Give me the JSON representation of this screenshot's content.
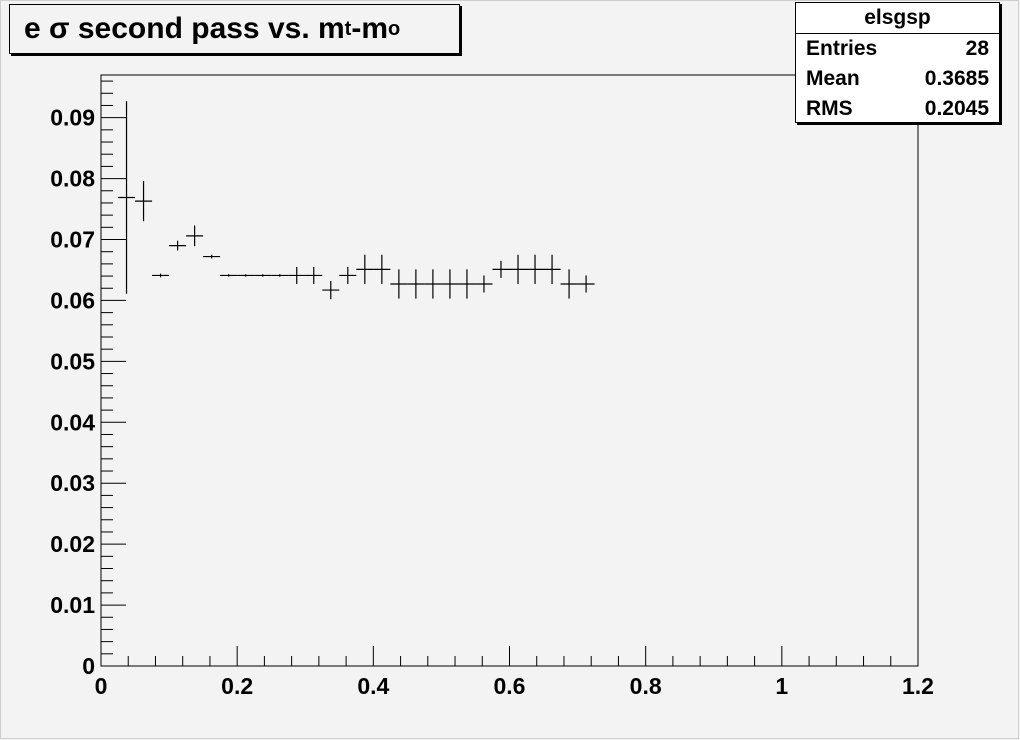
{
  "title": {
    "prefix": "e σ second pass vs. m",
    "sub1": "t",
    "mid": "-m",
    "sub2": "o"
  },
  "stats": {
    "name": "elsgsp",
    "rows": [
      {
        "label": "Entries",
        "value": "28"
      },
      {
        "label": "Mean",
        "value": "0.3685"
      },
      {
        "label": "RMS",
        "value": "0.2045"
      }
    ]
  },
  "chart_data": {
    "type": "scatter",
    "xlim": [
      0,
      1.2
    ],
    "ylim": [
      0,
      0.097
    ],
    "x_ticks": [
      "0",
      "0.2",
      "0.4",
      "0.6",
      "0.8",
      "1",
      "1.2"
    ],
    "y_ticks": [
      "0",
      "0.01",
      "0.02",
      "0.03",
      "0.04",
      "0.05",
      "0.06",
      "0.07",
      "0.08",
      "0.09"
    ],
    "bin_half_width": 0.0125,
    "grid": false,
    "points": [
      {
        "x": 0.0375,
        "y": 0.0769,
        "err": 0.0158
      },
      {
        "x": 0.0625,
        "y": 0.0763,
        "err": 0.0033
      },
      {
        "x": 0.0875,
        "y": 0.0641,
        "err": 0.0003
      },
      {
        "x": 0.1125,
        "y": 0.069,
        "err": 0.0008
      },
      {
        "x": 0.1375,
        "y": 0.0706,
        "err": 0.0017
      },
      {
        "x": 0.1625,
        "y": 0.0672,
        "err": 0.0003
      },
      {
        "x": 0.1875,
        "y": 0.0641,
        "err": 0.0002
      },
      {
        "x": 0.2125,
        "y": 0.0641,
        "err": 0.0002
      },
      {
        "x": 0.2375,
        "y": 0.0641,
        "err": 0.0002
      },
      {
        "x": 0.2625,
        "y": 0.0641,
        "err": 0.0002
      },
      {
        "x": 0.2875,
        "y": 0.0641,
        "err": 0.0014
      },
      {
        "x": 0.3125,
        "y": 0.0641,
        "err": 0.0014
      },
      {
        "x": 0.3375,
        "y": 0.0617,
        "err": 0.0015
      },
      {
        "x": 0.3625,
        "y": 0.0641,
        "err": 0.0014
      },
      {
        "x": 0.3875,
        "y": 0.0651,
        "err": 0.0024
      },
      {
        "x": 0.4125,
        "y": 0.0651,
        "err": 0.0024
      },
      {
        "x": 0.4375,
        "y": 0.0627,
        "err": 0.0024
      },
      {
        "x": 0.4625,
        "y": 0.0627,
        "err": 0.0024
      },
      {
        "x": 0.4875,
        "y": 0.0627,
        "err": 0.0024
      },
      {
        "x": 0.5125,
        "y": 0.0627,
        "err": 0.0024
      },
      {
        "x": 0.5375,
        "y": 0.0627,
        "err": 0.0024
      },
      {
        "x": 0.5625,
        "y": 0.0627,
        "err": 0.0014
      },
      {
        "x": 0.5875,
        "y": 0.0651,
        "err": 0.0014
      },
      {
        "x": 0.6125,
        "y": 0.0651,
        "err": 0.0024
      },
      {
        "x": 0.6375,
        "y": 0.0651,
        "err": 0.0024
      },
      {
        "x": 0.6625,
        "y": 0.0651,
        "err": 0.0024
      },
      {
        "x": 0.6875,
        "y": 0.0627,
        "err": 0.0024
      },
      {
        "x": 0.7125,
        "y": 0.0627,
        "err": 0.0014
      }
    ]
  }
}
